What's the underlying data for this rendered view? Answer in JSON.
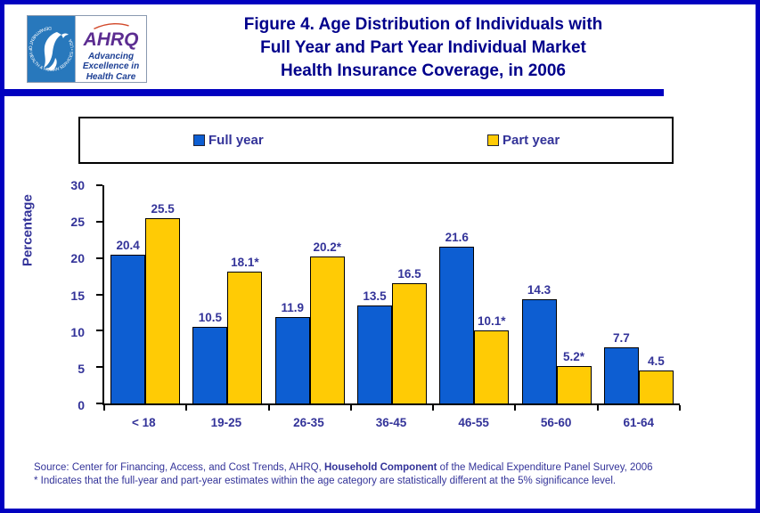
{
  "header": {
    "hhs_seal_text": "DEPARTMENT OF HEALTH & HUMAN SERVICES • USA",
    "ahrq": {
      "acronym": "AHRQ",
      "tagline_lines": [
        "Advancing",
        "Excellence in",
        "Health Care"
      ]
    },
    "title_lines": [
      "Figure 4. Age Distribution of Individuals with",
      "Full Year and Part Year Individual Market",
      "Health Insurance Coverage, in 2006"
    ]
  },
  "chart_data": {
    "type": "bar",
    "title": "Figure 4. Age Distribution of Individuals with Full Year and Part Year Individual Market Health Insurance Coverage, in 2006",
    "categories": [
      "< 18",
      "19-25",
      "26-35",
      "36-45",
      "46-55",
      "56-60",
      "61-64"
    ],
    "series": [
      {
        "name": "Full year",
        "color": "#0D5ED2",
        "values": [
          20.4,
          10.5,
          11.9,
          13.5,
          21.6,
          14.3,
          7.7
        ],
        "labels": [
          "20.4",
          "10.5",
          "11.9",
          "13.5",
          "21.6",
          "14.3",
          "7.7"
        ]
      },
      {
        "name": "Part year",
        "color": "#FFCB05",
        "values": [
          25.5,
          18.1,
          20.2,
          16.5,
          10.1,
          5.2,
          4.5
        ],
        "labels": [
          "25.5",
          "18.1*",
          "20.2*",
          "16.5",
          "10.1*",
          "5.2*",
          "4.5"
        ]
      }
    ],
    "xlabel": "",
    "ylabel": "Percentage",
    "ylim": [
      0,
      30
    ],
    "yticks": [
      0,
      5,
      10,
      15,
      20,
      25,
      30
    ],
    "grid": false,
    "legend_position": "top"
  },
  "footer": {
    "source_prefix": "Source: Center for Financing, Access, and Cost Trends, AHRQ, ",
    "source_emphasis": "Household Component",
    "source_suffix": " of the Medical Expenditure Panel Survey, 2006",
    "note": "* Indicates that the full-year and part-year estimates within the age category are statistically different at the 5% significance level."
  },
  "colors": {
    "page_border_blue": "#0101C0",
    "title_navy": "#00008B",
    "chart_text_blue": "#333399",
    "full_year_bar": "#0D5ED2",
    "part_year_bar": "#FFCB05",
    "hhs_seal_blue": "#2878BC",
    "ahrq_purple": "#5C2D91",
    "ahrq_arc_red": "#D2492A"
  }
}
